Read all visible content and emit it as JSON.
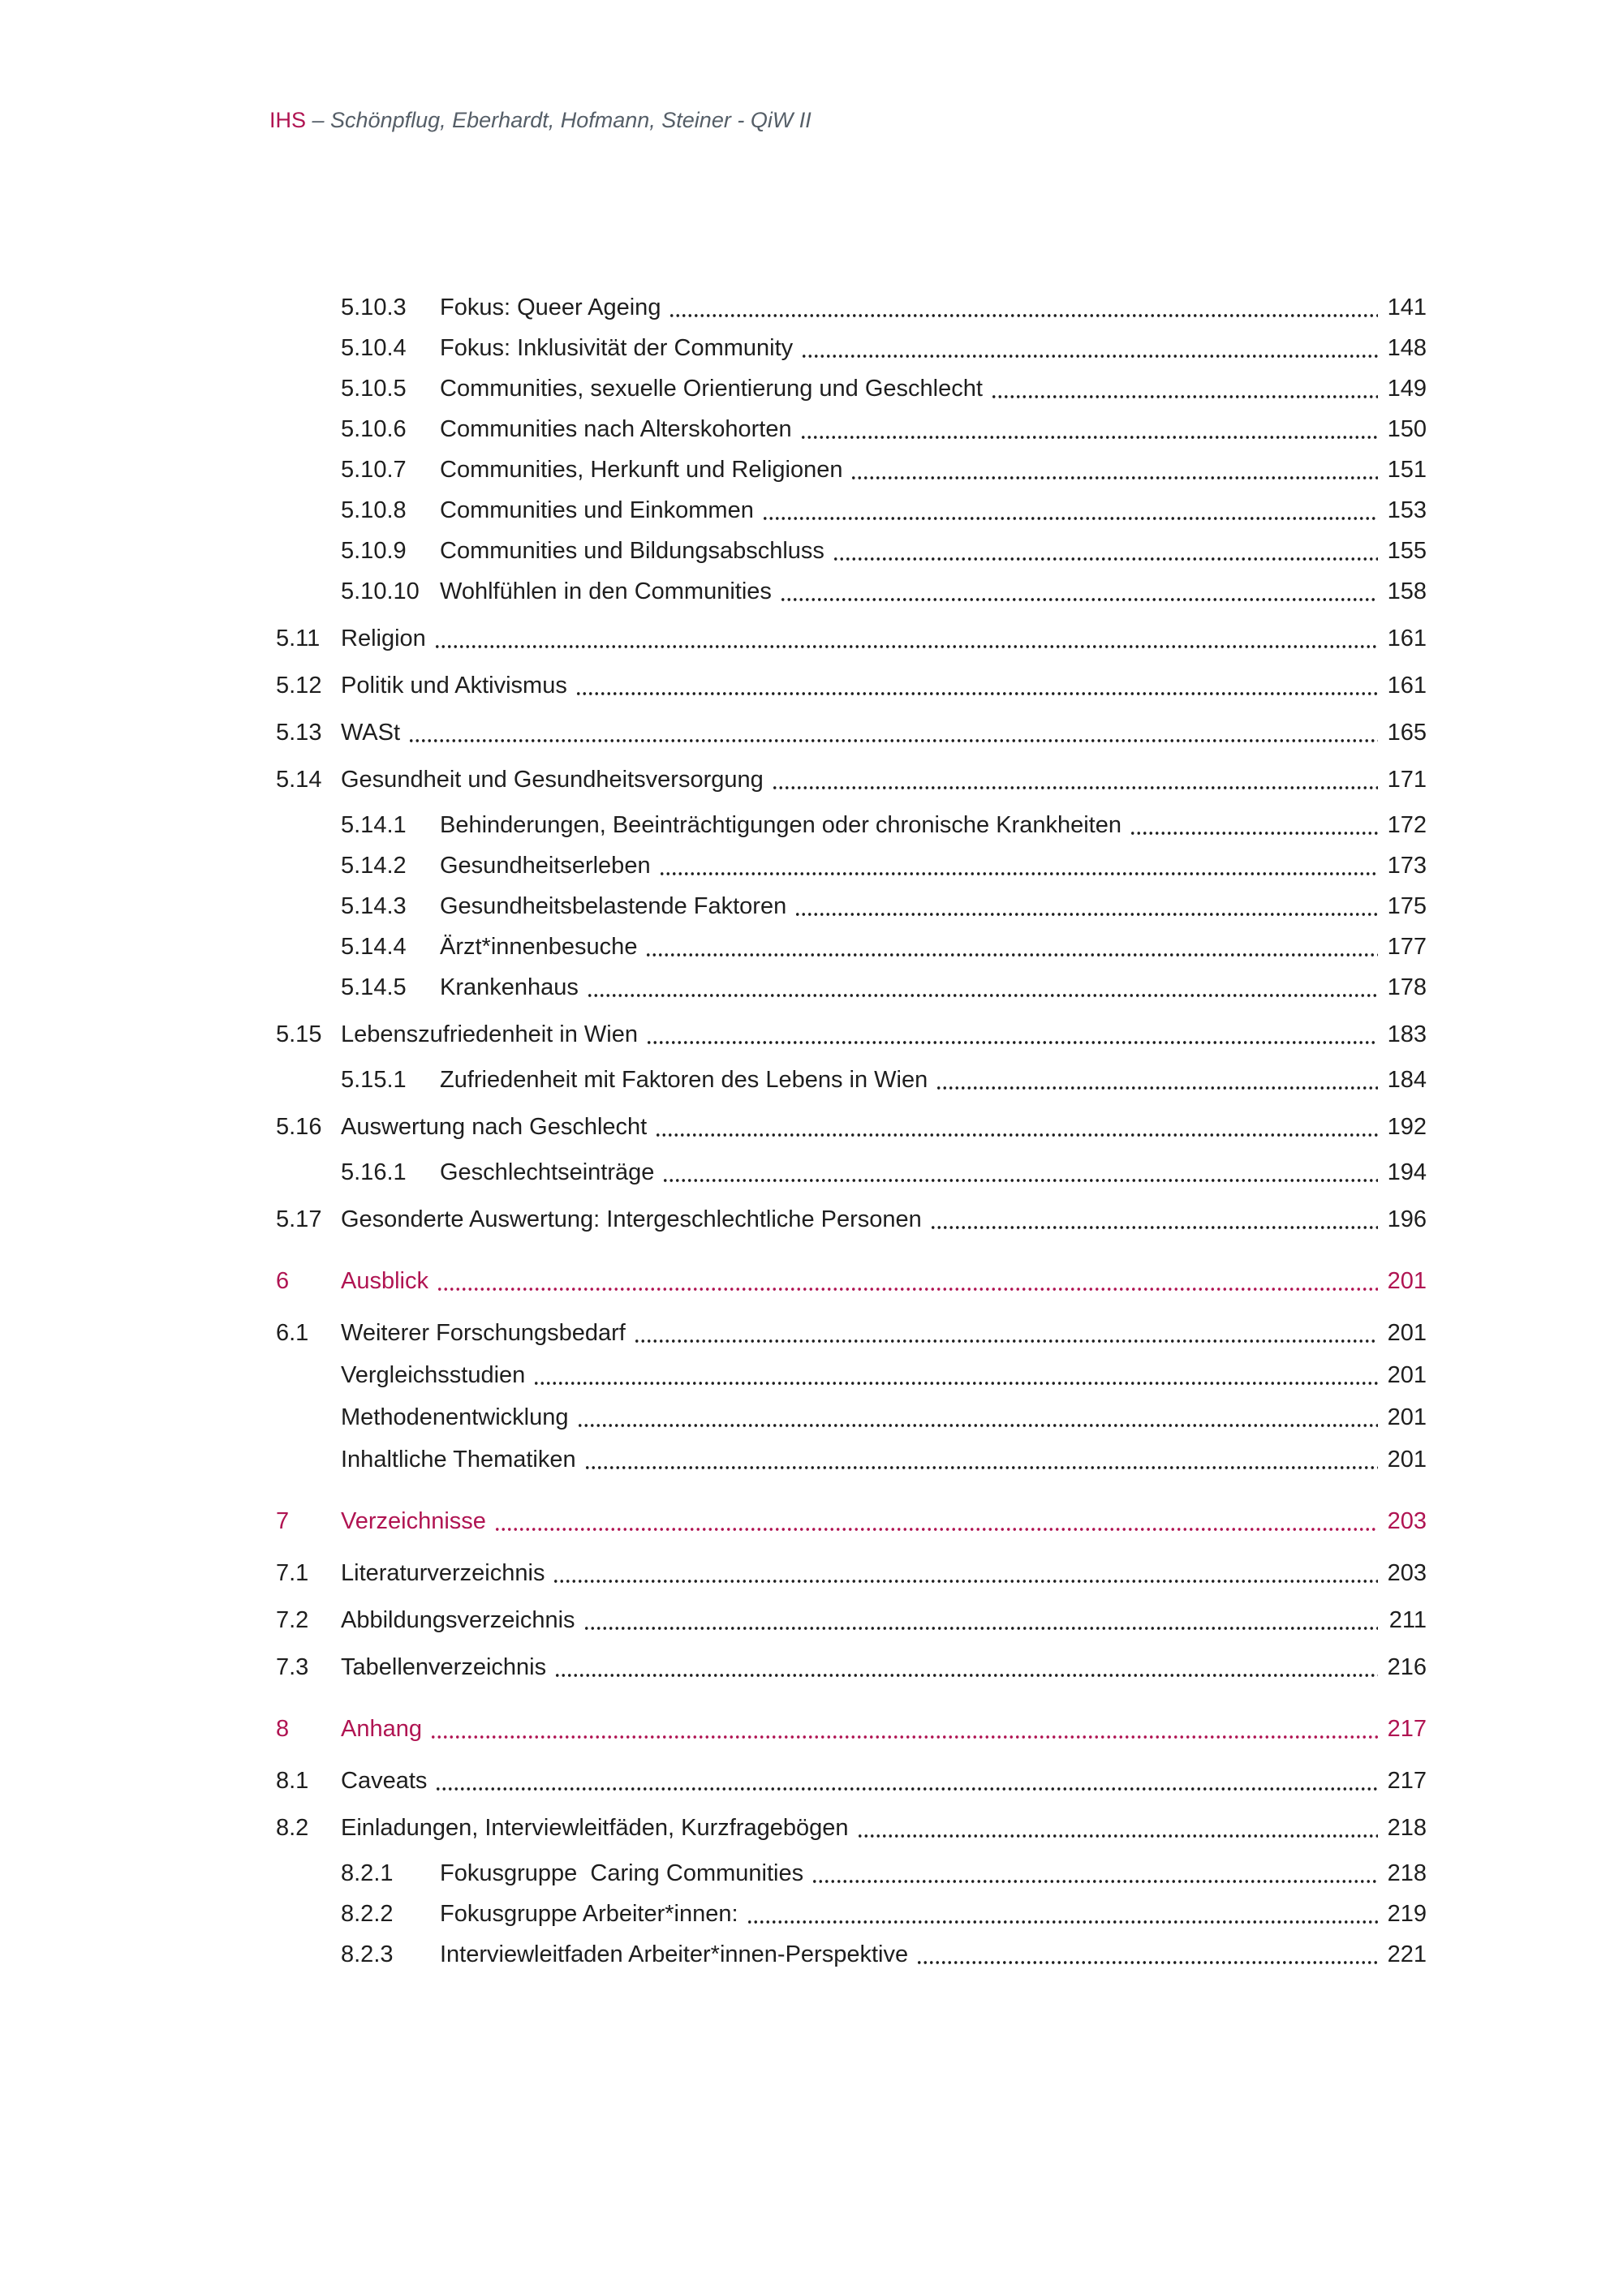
{
  "header": {
    "brand": "IHS",
    "rest": " – Schönpflug, Eberhardt, Hofmann, Steiner - QiW II"
  },
  "colors": {
    "accent": "#B01452",
    "body_text": "#1E1E1E",
    "header_text": "#555E67"
  },
  "toc": {
    "entries": [
      {
        "num": "5.10.3",
        "title": "Fokus: Queer Ageing",
        "page": "141",
        "level": "sub"
      },
      {
        "num": "5.10.4",
        "title": "Fokus: Inklusivität der Community",
        "page": "148",
        "level": "sub"
      },
      {
        "num": "5.10.5",
        "title": "Communities, sexuelle Orientierung und Geschlecht",
        "page": "149",
        "level": "sub"
      },
      {
        "num": "5.10.6",
        "title": "Communities nach Alterskohorten",
        "page": "150",
        "level": "sub"
      },
      {
        "num": "5.10.7",
        "title": "Communities, Herkunft und Religionen",
        "page": "151",
        "level": "sub"
      },
      {
        "num": "5.10.8",
        "title": "Communities und Einkommen",
        "page": "153",
        "level": "sub"
      },
      {
        "num": "5.10.9",
        "title": "Communities und Bildungsabschluss",
        "page": "155",
        "level": "sub"
      },
      {
        "num": "5.10.10",
        "title": "Wohlfühlen in den Communities",
        "page": "158",
        "level": "sub"
      },
      {
        "num": "5.11",
        "title": "Religion",
        "page": "161",
        "level": "l1"
      },
      {
        "num": "5.12",
        "title": "Politik und Aktivismus",
        "page": "161",
        "level": "l1"
      },
      {
        "num": "5.13",
        "title": "WASt",
        "page": "165",
        "level": "l1"
      },
      {
        "num": "5.14",
        "title": "Gesundheit und Gesundheitsversorgung",
        "page": "171",
        "level": "l1"
      },
      {
        "num": "5.14.1",
        "title": "Behinderungen, Beeinträchtigungen oder chronische Krankheiten",
        "page": "172",
        "level": "sub"
      },
      {
        "num": "5.14.2",
        "title": "Gesundheitserleben",
        "page": "173",
        "level": "sub"
      },
      {
        "num": "5.14.3",
        "title": "Gesundheitsbelastende Faktoren",
        "page": "175",
        "level": "sub"
      },
      {
        "num": "5.14.4",
        "title": "Ärzt*innenbesuche",
        "page": "177",
        "level": "sub"
      },
      {
        "num": "5.14.5",
        "title": "Krankenhaus",
        "page": "178",
        "level": "sub"
      },
      {
        "num": "5.15",
        "title": "Lebenszufriedenheit in Wien",
        "page": "183",
        "level": "l1"
      },
      {
        "num": "5.15.1",
        "title": "Zufriedenheit mit Faktoren des Lebens in Wien",
        "page": "184",
        "level": "sub"
      },
      {
        "num": "5.16",
        "title": "Auswertung nach Geschlecht",
        "page": "192",
        "level": "l1"
      },
      {
        "num": "5.16.1",
        "title": "Geschlechtseinträge",
        "page": "194",
        "level": "sub"
      },
      {
        "num": "5.17",
        "title": "Gesonderte Auswertung: Intergeschlechtliche Personen",
        "page": "196",
        "level": "l1"
      },
      {
        "num": "6",
        "title": "Ausblick",
        "page": "201",
        "level": "major"
      },
      {
        "num": "6.1",
        "title": "Weiterer Forschungsbedarf",
        "page": "201",
        "level": "l1"
      },
      {
        "num": "",
        "title": "Vergleichsstudien",
        "page": "201",
        "level": "plain"
      },
      {
        "num": "",
        "title": "Methodenentwicklung",
        "page": "201",
        "level": "plain"
      },
      {
        "num": "",
        "title": "Inhaltliche Thematiken",
        "page": "201",
        "level": "plain"
      },
      {
        "num": "7",
        "title": "Verzeichnisse",
        "page": "203",
        "level": "major"
      },
      {
        "num": "7.1",
        "title": "Literaturverzeichnis",
        "page": "203",
        "level": "l1"
      },
      {
        "num": "7.2",
        "title": "Abbildungsverzeichnis",
        "page": "211",
        "level": "l1"
      },
      {
        "num": "7.3",
        "title": "Tabellenverzeichnis",
        "page": "216",
        "level": "l1"
      },
      {
        "num": "8",
        "title": "Anhang",
        "page": "217",
        "level": "major"
      },
      {
        "num": "8.1",
        "title": "Caveats",
        "page": "217",
        "level": "l1"
      },
      {
        "num": "8.2",
        "title": "Einladungen, Interviewleitfäden, Kurzfragebögen",
        "page": "218",
        "level": "l1"
      },
      {
        "num": "8.2.1",
        "title": "Fokusgruppe  Caring Communities",
        "page": "218",
        "level": "sub"
      },
      {
        "num": "8.2.2",
        "title": "Fokusgruppe Arbeiter*innen:",
        "page": "219",
        "level": "sub"
      },
      {
        "num": "8.2.3",
        "title": "Interviewleitfaden Arbeiter*innen-Perspektive",
        "page": "221",
        "level": "sub"
      }
    ]
  }
}
